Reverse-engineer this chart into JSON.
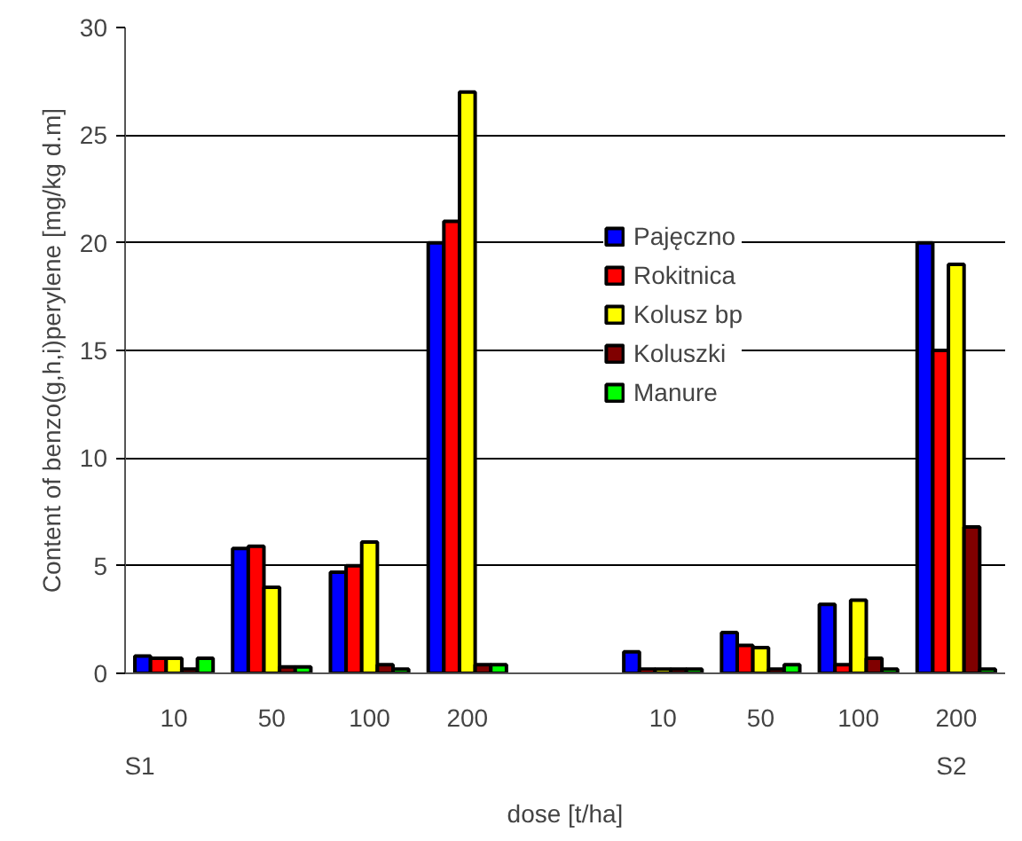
{
  "chart_data": {
    "type": "bar",
    "xlabel": "dose [t/ha]",
    "ylabel": "Content of benzo(g,h,i)perylene [mg/kg d.m]",
    "categories": [
      "10",
      "50",
      "100",
      "200",
      null,
      "10",
      "50",
      "100",
      "200"
    ],
    "series": [
      {
        "name": "Pajęczno",
        "color": "#0000ff",
        "values": [
          0.8,
          5.8,
          4.7,
          20,
          null,
          1.0,
          1.9,
          3.2,
          20
        ]
      },
      {
        "name": "Rokitnica",
        "color": "#ff0000",
        "values": [
          0.7,
          5.9,
          5.0,
          21,
          null,
          0.2,
          1.3,
          0.4,
          15
        ]
      },
      {
        "name": "Kolusz bp",
        "color": "#ffff00",
        "values": [
          0.7,
          4.0,
          6.1,
          27,
          null,
          0.2,
          1.2,
          3.4,
          19
        ]
      },
      {
        "name": "Koluszki",
        "color": "#800000",
        "values": [
          0.2,
          0.3,
          0.4,
          0.4,
          null,
          0.2,
          0.2,
          0.7,
          6.8
        ]
      },
      {
        "name": "Manure",
        "color": "#00ff00",
        "values": [
          0.7,
          0.3,
          0.2,
          0.4,
          null,
          0.2,
          0.4,
          0.2,
          0.2
        ]
      }
    ],
    "ylim": [
      0,
      30
    ],
    "yticks": [
      0,
      5,
      10,
      15,
      20,
      25,
      30
    ],
    "grid": "y",
    "legend": "center",
    "annotations": [
      "S1",
      "S2"
    ]
  }
}
